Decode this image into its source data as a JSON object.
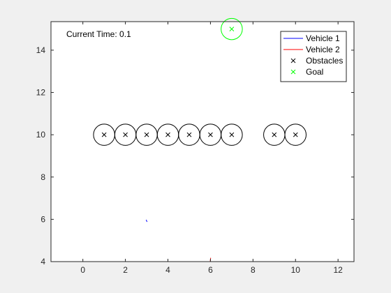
{
  "figure": {
    "background": "#f0f0f0",
    "axes_background": "#ffffff"
  },
  "chart_data": {
    "type": "scatter",
    "title": "",
    "xlabel": "",
    "ylabel": "",
    "xlim": [
      -1.5,
      12.75
    ],
    "ylim": [
      4,
      15.35
    ],
    "xticks": [
      0,
      2,
      4,
      6,
      8,
      10,
      12
    ],
    "yticks": [
      4,
      6,
      8,
      10,
      12,
      14
    ],
    "grid": false,
    "annotation": "Current Time: 0.1",
    "obstacle_radius": 0.5,
    "obstacles": [
      [
        1,
        10
      ],
      [
        2,
        10
      ],
      [
        3,
        10
      ],
      [
        4,
        10
      ],
      [
        5,
        10
      ],
      [
        6,
        10
      ],
      [
        7,
        10
      ],
      [
        9,
        10
      ],
      [
        10,
        10
      ]
    ],
    "goal": {
      "x": 7,
      "y": 15,
      "radius": 0.5
    },
    "series": [
      {
        "name": "Vehicle 1",
        "color": "#0000ff",
        "x": [
          2.98,
          3.0,
          3.02
        ],
        "y": [
          5.98,
          5.92,
          5.88
        ]
      },
      {
        "name": "Vehicle 2",
        "color": "#ff0000",
        "x": [
          5.99,
          6.0,
          6.01
        ],
        "y": [
          4.0,
          4.1,
          4.18
        ]
      }
    ],
    "legend": {
      "placement": "top-right",
      "entries": [
        {
          "label": "Vehicle 1",
          "kind": "line",
          "color": "#0000ff"
        },
        {
          "label": "Vehicle 2",
          "kind": "line",
          "color": "#ff0000"
        },
        {
          "label": "Obstacles",
          "kind": "marker",
          "color": "#000000"
        },
        {
          "label": "Goal",
          "kind": "marker",
          "color": "#00ff00"
        }
      ]
    }
  }
}
